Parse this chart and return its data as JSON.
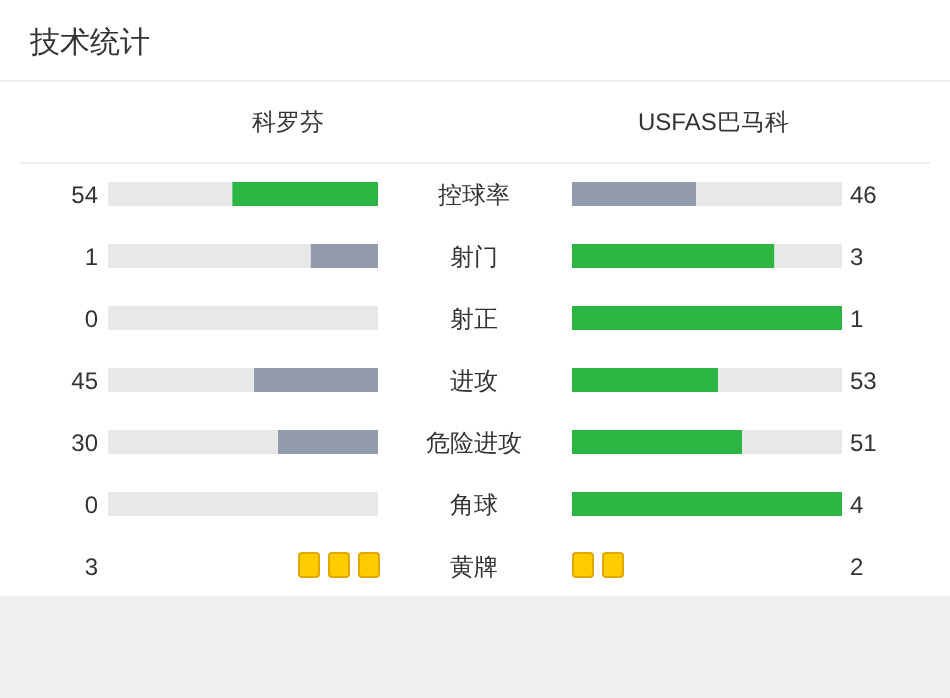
{
  "chart_data": {
    "type": "other",
    "title": "技术统计",
    "categories": [
      "控球率",
      "射门",
      "射正",
      "进攻",
      "危险进攻",
      "角球",
      "黄牌"
    ],
    "series": [
      {
        "name": "科罗芬",
        "colors": [
          "#2db543",
          "#939bac",
          "#939bac",
          "#939bac",
          "#939bac",
          "#939bac",
          "#ffcc00"
        ],
        "values": [
          54,
          1,
          0,
          45,
          30,
          0,
          3
        ]
      },
      {
        "name": "USFAS巴马科",
        "colors": [
          "#939bac",
          "#2db543",
          "#2db543",
          "#2db543",
          "#2db543",
          "#2db543",
          "#ffcc00"
        ],
        "values": [
          46,
          3,
          1,
          53,
          51,
          4,
          2
        ]
      }
    ],
    "data_labels": true
  }
}
